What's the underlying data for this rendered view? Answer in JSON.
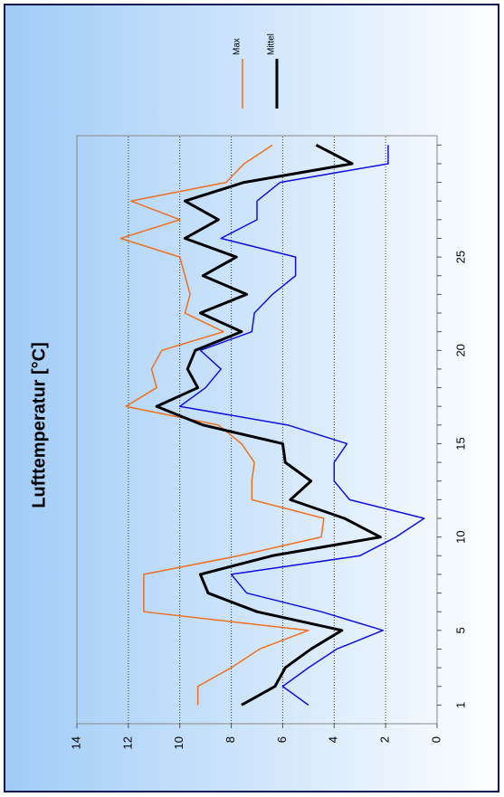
{
  "chart_data": {
    "type": "line",
    "title": "Lufttemperatur [°C]",
    "x": [
      1,
      2,
      3,
      4,
      5,
      6,
      7,
      8,
      9,
      10,
      11,
      12,
      13,
      14,
      15,
      16,
      17,
      18,
      19,
      20,
      21,
      22,
      23,
      24,
      25,
      26,
      27,
      28,
      29,
      30,
      31
    ],
    "xlim": [
      0,
      31.5
    ],
    "xticks": [
      1,
      5,
      10,
      15,
      20,
      25
    ],
    "ylim": [
      0,
      14
    ],
    "yticks": [
      0,
      2,
      4,
      6,
      8,
      10,
      12,
      14
    ],
    "grid": true,
    "legend": "top-right",
    "series": [
      {
        "name": "Max",
        "color": "#f07020",
        "width": 1.5,
        "values": [
          9.3,
          9.3,
          8.0,
          6.9,
          5.0,
          11.4,
          11.4,
          11.4,
          7.7,
          4.5,
          4.4,
          7.2,
          7.2,
          7.1,
          7.6,
          8.5,
          12.1,
          10.9,
          11.1,
          10.7,
          8.3,
          9.8,
          9.6,
          9.8,
          10.0,
          12.3,
          10.0,
          11.9,
          8.2,
          7.5,
          6.4
        ]
      },
      {
        "name": "Mittel",
        "color": "#000000",
        "width": 3,
        "values": [
          7.6,
          6.3,
          5.9,
          4.9,
          3.7,
          7.0,
          8.9,
          9.2,
          6.4,
          2.2,
          3.6,
          5.7,
          4.9,
          5.9,
          6.0,
          9.1,
          10.9,
          9.3,
          9.7,
          9.4,
          7.6,
          9.2,
          7.4,
          9.1,
          7.8,
          9.8,
          8.5,
          9.8,
          7.5,
          3.3,
          4.7
        ]
      },
      {
        "color": "#1010e0",
        "width": 1.5,
        "values": [
          5.0,
          6.0,
          5.0,
          3.9,
          2.1,
          4.5,
          7.4,
          8.0,
          3.0,
          1.6,
          0.5,
          3.4,
          4.0,
          4.0,
          3.5,
          5.8,
          10.0,
          9.0,
          8.4,
          9.2,
          7.2,
          7.1,
          6.4,
          5.5,
          5.5,
          8.4,
          7.0,
          7.0,
          6.1,
          1.9,
          1.9
        ]
      }
    ]
  }
}
